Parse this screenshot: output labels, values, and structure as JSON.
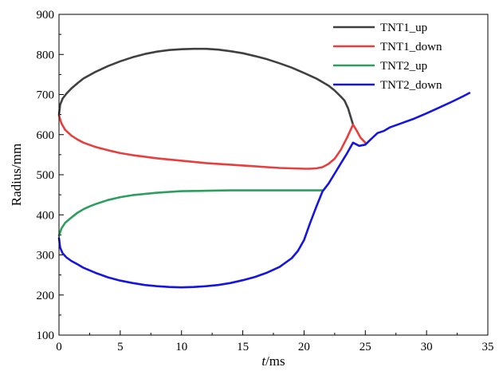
{
  "chart_data": {
    "type": "line",
    "title": "",
    "xlabel_italic": "t",
    "xlabel_rest": "/ms",
    "ylabel": "Radius/mm",
    "xlim": [
      0,
      35
    ],
    "ylim": [
      100,
      900
    ],
    "xticks": [
      0,
      5,
      10,
      15,
      20,
      25,
      30,
      35
    ],
    "yticks": [
      100,
      200,
      300,
      400,
      500,
      600,
      700,
      800,
      900
    ],
    "grid": false,
    "legend_position": "top-right",
    "series": [
      {
        "name": "TNT1_up",
        "color": "#404040",
        "x": [
          0,
          0.1,
          0.3,
          0.6,
          1,
          1.5,
          2,
          3,
          4,
          5,
          6,
          7,
          8,
          9,
          10,
          11,
          11.5,
          12,
          13,
          14,
          15,
          16,
          17,
          18,
          19,
          20,
          21,
          22,
          22.5,
          23,
          23.3,
          23.6,
          23.8,
          24
        ],
        "y": [
          650,
          675,
          690,
          702,
          715,
          728,
          740,
          757,
          771,
          783,
          793,
          801,
          807,
          811,
          813,
          814,
          814,
          814,
          812,
          808,
          803,
          796,
          788,
          778,
          767,
          754,
          740,
          722,
          710,
          695,
          685,
          665,
          645,
          625
        ]
      },
      {
        "name": "TNT1_down",
        "color": "#e83e3e",
        "x": [
          0,
          0.2,
          0.5,
          1,
          1.5,
          2,
          3,
          4,
          5,
          6,
          7,
          8,
          9,
          10,
          11,
          12,
          13,
          14,
          15,
          16,
          17,
          18,
          19,
          20,
          20.5,
          21,
          21.5,
          22,
          22.5,
          23,
          23.5,
          24,
          24.3,
          24.6,
          25
        ],
        "y": [
          648,
          628,
          612,
          598,
          588,
          580,
          569,
          561,
          554,
          549,
          545,
          541,
          538,
          535,
          532,
          529,
          527,
          525,
          523,
          521,
          519,
          517,
          516,
          515,
          515,
          516,
          519,
          527,
          540,
          562,
          592,
          625,
          610,
          593,
          580
        ]
      },
      {
        "name": "TNT2_up",
        "color": "#2e9e5e",
        "x": [
          0,
          0.2,
          0.5,
          1,
          1.5,
          2,
          2.5,
          3,
          4,
          5,
          6,
          7,
          8,
          9,
          10,
          12,
          14,
          16,
          18,
          20,
          21,
          21.5
        ],
        "y": [
          348,
          366,
          380,
          393,
          405,
          414,
          421,
          427,
          437,
          444,
          449,
          452,
          455,
          457,
          459,
          460,
          461,
          461,
          461,
          461,
          461,
          461
        ]
      },
      {
        "name": "TNT2_down",
        "color": "#1515e0",
        "x": [
          0,
          0.1,
          0.3,
          0.6,
          1,
          1.5,
          2,
          3,
          4,
          5,
          6,
          7,
          8,
          9,
          10,
          11,
          12,
          13,
          14,
          15,
          16,
          17,
          18,
          19,
          19.5,
          20,
          20.5,
          21,
          21.5,
          22,
          22.5,
          23,
          23.5,
          24,
          24.5,
          25,
          25.5,
          26,
          26.5,
          27,
          28,
          29,
          30,
          31,
          32,
          33,
          33.5
        ],
        "y": [
          342,
          318,
          304,
          294,
          285,
          277,
          268,
          255,
          244,
          236,
          230,
          225,
          222,
          220,
          219,
          220,
          222,
          225,
          230,
          237,
          245,
          256,
          270,
          292,
          310,
          337,
          380,
          420,
          458,
          478,
          503,
          528,
          553,
          580,
          572,
          575,
          590,
          604,
          609,
          618,
          629,
          640,
          653,
          667,
          681,
          696,
          704
        ]
      }
    ]
  }
}
